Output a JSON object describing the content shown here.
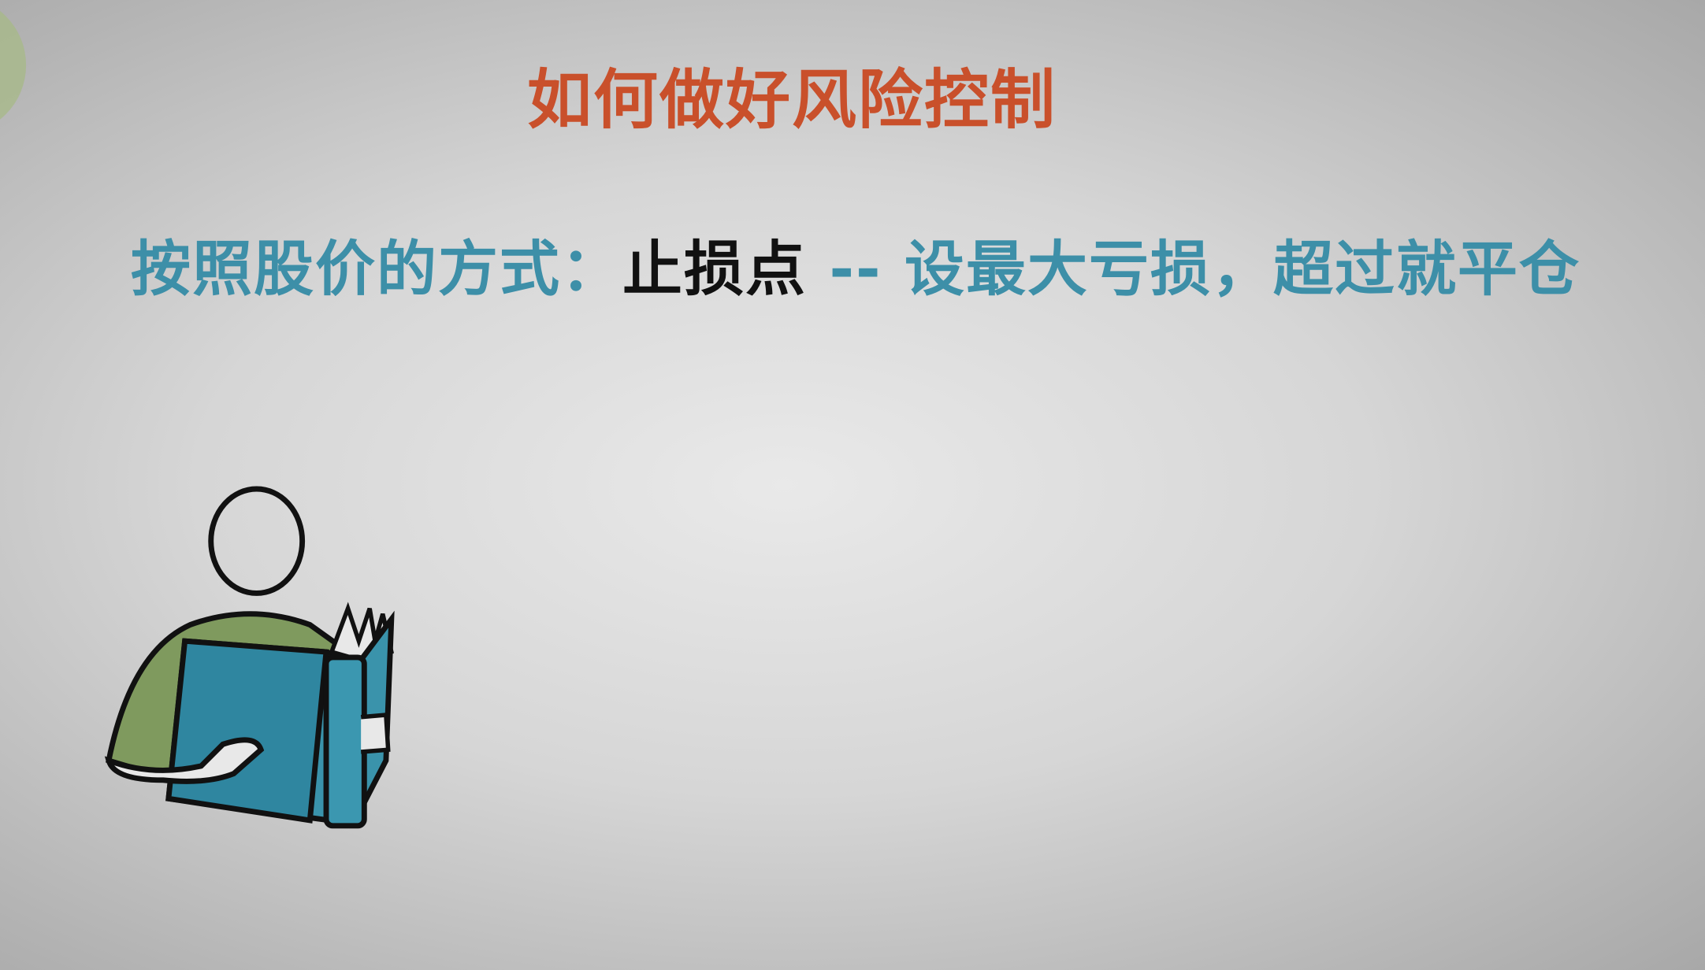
{
  "header": {
    "title": "如何做好风险控制"
  },
  "line": {
    "lead": "按照股价的方式：",
    "keyword": "止损点",
    "dash": "--",
    "detail": "设最大亏损，超过就平仓"
  }
}
